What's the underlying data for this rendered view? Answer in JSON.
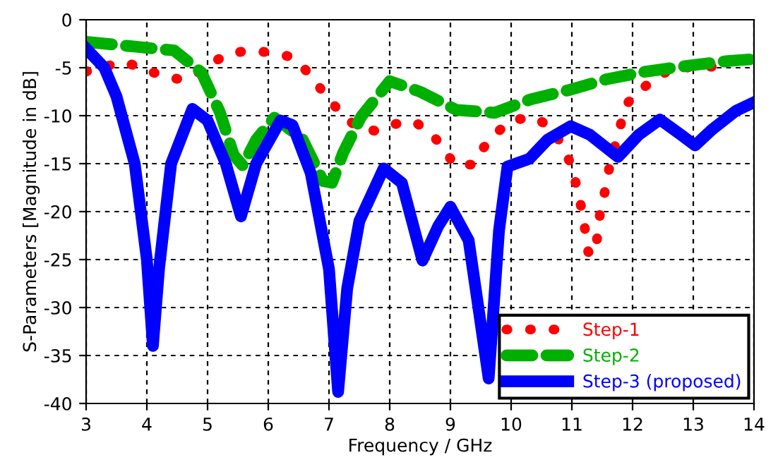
{
  "chart_data": {
    "type": "line",
    "xlabel": "Frequency / GHz",
    "ylabel": "S-Parameters [Magnitude in dB]",
    "xlim": [
      3,
      14
    ],
    "xticks": [
      3,
      4,
      5,
      6,
      7,
      8,
      9,
      10,
      11,
      12,
      13,
      14
    ],
    "ylim": [
      -40,
      0
    ],
    "yticks": [
      -40,
      -35,
      -30,
      -25,
      -20,
      -15,
      -10,
      -5,
      0
    ],
    "grid": true,
    "legend": "bottom right",
    "series": [
      {
        "name": "Step-1",
        "color": "#ff0000",
        "line_style": "dotted",
        "x": [
          3.0,
          3.6,
          3.93,
          4.22,
          4.53,
          4.83,
          5.06,
          5.34,
          5.66,
          6.02,
          6.33,
          6.57,
          6.78,
          6.98,
          7.2,
          7.44,
          7.77,
          8.06,
          8.4,
          8.66,
          8.88,
          9.06,
          9.37,
          9.55,
          9.79,
          10.06,
          10.4,
          10.64,
          10.85,
          10.99,
          11.08,
          11.16,
          11.22,
          11.27,
          11.38,
          11.43,
          11.47,
          11.56,
          11.62,
          11.81,
          11.93,
          12.1,
          12.61,
          13.0,
          13.35
        ],
        "values": [
          -5.4,
          -4.4,
          -5.0,
          -5.8,
          -6.2,
          -5.6,
          -4.5,
          -3.6,
          -3.2,
          -3.4,
          -3.8,
          -4.9,
          -6.5,
          -8.2,
          -9.7,
          -11.1,
          -11.6,
          -10.9,
          -10.6,
          -11.7,
          -13.3,
          -15.1,
          -15.1,
          -13.3,
          -11.6,
          -10.4,
          -10.2,
          -11.2,
          -13.1,
          -15.2,
          -17.4,
          -19.7,
          -22.0,
          -24.2,
          -24.5,
          -22.1,
          -19.8,
          -17.5,
          -15.3,
          -10.8,
          -8.6,
          -7.4,
          -5.2,
          -4.9,
          -4.9
        ]
      },
      {
        "name": "Step-2",
        "color": "#00b000",
        "line_style": "dashed",
        "x": [
          3.0,
          3.8,
          4.45,
          4.9,
          5.2,
          5.43,
          5.58,
          5.8,
          6.1,
          6.56,
          6.9,
          7.05,
          7.23,
          7.53,
          8.0,
          8.5,
          9.1,
          9.73,
          10.32,
          10.97,
          11.57,
          12.22,
          12.91,
          13.57,
          14.0
        ],
        "values": [
          -2.3,
          -2.8,
          -3.2,
          -5.5,
          -9.6,
          -14.1,
          -15.2,
          -12.5,
          -10.2,
          -12.4,
          -16.8,
          -17.0,
          -13.9,
          -10.1,
          -6.4,
          -7.5,
          -9.4,
          -9.7,
          -8.3,
          -7.3,
          -6.2,
          -5.4,
          -4.8,
          -4.3,
          -4.1
        ]
      },
      {
        "name": "Step-3 (proposed)",
        "color": "#0000ff",
        "line_style": "solid",
        "x": [
          3.0,
          3.3,
          3.5,
          3.8,
          4.0,
          4.1,
          4.2,
          4.4,
          4.75,
          5.0,
          5.3,
          5.55,
          5.8,
          6.2,
          6.4,
          6.7,
          7.0,
          7.15,
          7.3,
          7.5,
          7.9,
          8.2,
          8.54,
          8.8,
          9.0,
          9.3,
          9.63,
          9.8,
          9.94,
          10.3,
          10.6,
          10.98,
          11.3,
          11.76,
          12.1,
          12.45,
          12.8,
          13.03,
          13.3,
          13.7,
          14.0
        ],
        "values": [
          -3.0,
          -5.0,
          -8.0,
          -15.0,
          -25.0,
          -34.0,
          -26.0,
          -15.0,
          -9.3,
          -10.5,
          -15.0,
          -20.5,
          -15.0,
          -10.5,
          -11.0,
          -16.0,
          -26.0,
          -38.8,
          -28.0,
          -21.0,
          -15.5,
          -17.0,
          -25.1,
          -21.5,
          -19.5,
          -23.0,
          -37.4,
          -22.0,
          -15.3,
          -14.5,
          -12.5,
          -11.1,
          -12.0,
          -14.3,
          -12.0,
          -10.4,
          -12.0,
          -13.1,
          -11.5,
          -9.5,
          -8.6
        ]
      }
    ]
  }
}
